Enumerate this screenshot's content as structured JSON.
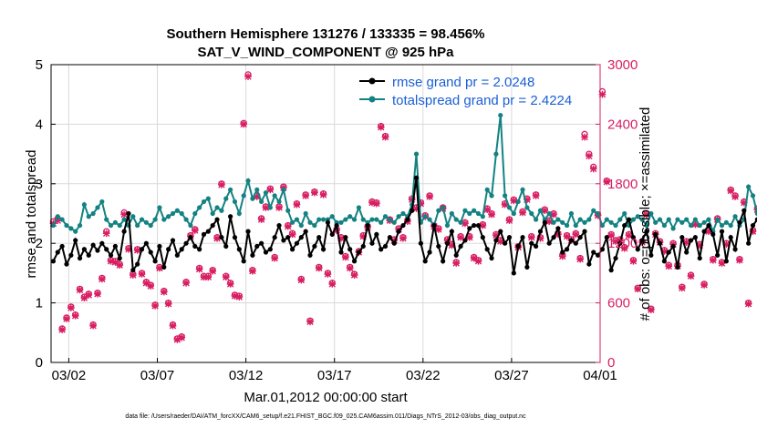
{
  "colors": {
    "rmse": "#000000",
    "spread": "#148282",
    "obs": "#d81e62",
    "legend_text": "#1a5fd6",
    "grid": "#dadada",
    "background": "#ffffff"
  },
  "chart_data": {
    "type": "line",
    "title": "Southern Hemisphere 131276 / 133335 = 98.456%",
    "subtitle": "SAT_V_WIND_COMPONENT @ 925 hPa",
    "xlabel": "Mar.01,2012 00:00:00 start",
    "ylabel": "rmse and totalspread",
    "ylabel_right": "# of obs: o=possible; ×=assimilated",
    "footer": "data file: /Users/raeder/DAI/ATM_forcXX/CAM6_setup/f.e21.FHIST_BGC.f09_025.CAM6assim.011/Diags_NTrS_2012-03/obs_diag_output.nc",
    "x_range_days": [
      0,
      31
    ],
    "x_ticks": [
      {
        "day": 1,
        "label": "03/02"
      },
      {
        "day": 6,
        "label": "03/07"
      },
      {
        "day": 11,
        "label": "03/12"
      },
      {
        "day": 16,
        "label": "03/17"
      },
      {
        "day": 21,
        "label": "03/22"
      },
      {
        "day": 26,
        "label": "03/27"
      },
      {
        "day": 31,
        "label": "04/01"
      }
    ],
    "ylim": [
      0,
      5
    ],
    "y_ticks": [
      "0",
      "1",
      "2",
      "3",
      "4",
      "5"
    ],
    "ylim_right": [
      0,
      3000
    ],
    "y_ticks_right": [
      "0",
      "600",
      "1200",
      "1800",
      "2400",
      "3000"
    ],
    "samples_per_day": 4,
    "legend": [
      {
        "name": "rmse grand pr = 2.0248",
        "series": "rmse"
      },
      {
        "name": "totalspread grand pr = 2.4224",
        "series": "spread"
      }
    ],
    "series": [
      {
        "name": "rmse",
        "color": "#000000",
        "marker": "circle",
        "values": [
          1.7,
          1.85,
          1.95,
          1.65,
          1.8,
          2.05,
          1.75,
          1.9,
          1.8,
          1.97,
          1.88,
          2.0,
          1.9,
          1.8,
          1.95,
          1.75,
          2.2,
          2.5,
          1.55,
          1.65,
          1.9,
          2.0,
          1.85,
          1.7,
          1.95,
          1.6,
          1.9,
          2.05,
          1.8,
          1.9,
          2.0,
          2.1,
          1.95,
          1.9,
          2.15,
          2.2,
          2.3,
          2.4,
          2.1,
          1.95,
          2.45,
          2.1,
          1.9,
          1.7,
          2.2,
          1.8,
          1.95,
          2.0,
          1.85,
          1.9,
          2.1,
          2.3,
          2.05,
          2.1,
          1.9,
          2.0,
          2.1,
          2.2,
          1.8,
          1.95,
          2.1,
          1.9,
          2.35,
          2.15,
          2.3,
          1.85,
          2.1,
          1.9,
          1.7,
          1.85,
          1.95,
          2.3,
          2.0,
          2.15,
          1.9,
          1.95,
          2.1,
          2.0,
          2.2,
          2.3,
          2.4,
          2.55,
          3.1,
          2.0,
          1.7,
          1.85,
          2.3,
          1.95,
          1.7,
          2.0,
          2.2,
          1.8,
          1.95,
          2.05,
          2.25,
          2.3,
          2.3,
          2.1,
          1.9,
          1.75,
          2.05,
          2.2,
          2.0,
          2.1,
          1.5,
          1.95,
          2.1,
          1.6,
          2.0,
          1.95,
          2.2,
          2.35,
          2.0,
          2.1,
          2.25,
          1.85,
          1.9,
          2.05,
          2.0,
          2.1,
          2.2,
          1.65,
          1.85,
          1.8,
          1.9,
          2.1,
          1.55,
          1.75,
          2.0,
          2.3,
          2.4,
          2.1,
          1.9,
          2.05,
          2.2,
          1.8,
          2.15,
          2.0,
          1.7,
          1.85,
          1.95,
          1.6,
          2.1,
          1.85,
          2.05,
          2.1,
          1.75,
          2.2,
          2.3,
          2.15,
          1.8,
          2.2,
          1.7,
          2.1,
          1.9,
          2.35,
          2.55,
          2.0,
          2.3,
          2.4,
          2.1,
          1.95,
          1.85,
          2.25,
          1.8,
          2.3
        ]
      },
      {
        "name": "totalspread",
        "color": "#148282",
        "marker": "circle",
        "values": [
          2.3,
          2.45,
          2.4,
          2.3,
          2.25,
          2.2,
          2.3,
          2.65,
          2.45,
          2.5,
          2.6,
          2.7,
          2.4,
          2.3,
          2.35,
          2.3,
          2.4,
          2.3,
          2.45,
          2.3,
          2.4,
          2.35,
          2.3,
          2.4,
          2.6,
          2.4,
          2.45,
          2.5,
          2.55,
          2.5,
          2.4,
          2.3,
          2.5,
          2.6,
          2.7,
          2.75,
          2.5,
          2.6,
          2.55,
          2.75,
          2.9,
          2.7,
          2.5,
          2.8,
          3.05,
          2.75,
          2.9,
          2.7,
          2.85,
          2.6,
          2.8,
          2.7,
          2.9,
          2.55,
          2.35,
          2.4,
          2.3,
          2.5,
          2.35,
          2.3,
          2.4,
          2.4,
          2.4,
          2.45,
          2.35,
          2.35,
          2.4,
          2.45,
          2.4,
          2.6,
          2.4,
          2.35,
          2.4,
          2.4,
          2.35,
          2.45,
          2.4,
          2.35,
          2.45,
          2.5,
          2.45,
          2.65,
          3.5,
          2.35,
          2.45,
          2.4,
          2.3,
          2.55,
          2.6,
          2.3,
          2.5,
          2.4,
          2.35,
          2.55,
          2.5,
          2.55,
          2.5,
          2.45,
          2.9,
          2.8,
          3.5,
          4.15,
          2.8,
          2.6,
          2.5,
          2.7,
          2.9,
          2.6,
          2.5,
          2.4,
          2.55,
          2.4,
          2.5,
          2.35,
          2.4,
          2.35,
          2.3,
          2.5,
          2.3,
          2.4,
          2.35,
          2.4,
          2.55,
          2.5,
          2.3,
          2.4,
          2.35,
          2.3,
          2.4,
          2.5,
          2.3,
          2.4,
          2.45,
          2.4,
          2.3,
          2.5,
          2.35,
          2.4,
          2.3,
          2.4,
          2.25,
          2.4,
          2.35,
          2.4,
          2.3,
          2.4,
          2.3,
          2.35,
          2.4,
          2.2,
          2.4,
          2.3,
          2.35,
          2.3,
          2.45,
          2.3,
          2.4,
          2.95,
          2.8,
          2.5,
          2.6,
          2.4,
          2.65,
          2.8,
          2.75,
          2.6,
          2.8,
          2.6,
          2.65
        ]
      },
      {
        "name": "obs_possible",
        "color": "#d81e62",
        "marker": "o",
        "axis": "right",
        "values": [
          1420,
          1450,
          340,
          450,
          560,
          480,
          740,
          660,
          690,
          380,
          700,
          850,
          1320,
          1030,
          1020,
          990,
          1510,
          1150,
          890,
          1140,
          900,
          810,
          780,
          580,
          960,
          720,
          600,
          380,
          240,
          260,
          810,
          1280,
          1340,
          950,
          870,
          870,
          930,
          1260,
          1800,
          870,
          800,
          680,
          670,
          2410,
          2900,
          930,
          1680,
          1450,
          1570,
          1750,
          1060,
          1570,
          1770,
          1380,
          1300,
          1600,
          840,
          1690,
          420,
          1720,
          960,
          1700,
          900,
          800,
          1340,
          1260,
          1070,
          960,
          890,
          1120,
          1280,
          1370,
          1620,
          1610,
          2380,
          2280,
          1440,
          1240,
          1350,
          1260,
          1430,
          1650,
          1560,
          1610,
          1480,
          1680,
          1380,
          1350,
          1560,
          1240,
          1190,
          1010,
          1270,
          1410,
          1270,
          1060,
          1030,
          1390,
          1550,
          1500,
          1290,
          1230,
          1600,
          1440,
          1640,
          1170,
          1520,
          1650,
          1270,
          1690,
          1260,
          1540,
          1430,
          1500,
          1300,
          1080,
          1280,
          1240,
          1300,
          1050,
          2300,
          2100,
          1970,
          1490,
          2730,
          1830,
          1290,
          1230,
          1240,
          1160,
          1290,
          1030,
          750,
          1220,
          1500,
          540,
          1300,
          1220,
          1130,
          980,
          1200,
          980,
          760,
          1220,
          880,
          1400,
          1190,
          790,
          1330,
          1040,
          1450,
          1010,
          1200,
          1740,
          1680,
          1040,
          1620,
          600,
          1330,
          1550,
          1300,
          1570,
          1270,
          1320,
          1370,
          1080,
          1740,
          1600
        ]
      },
      {
        "name": "obs_assimilated",
        "color": "#d81e62",
        "marker": "x",
        "axis": "right",
        "values": [
          1400,
          1430,
          330,
          440,
          550,
          470,
          730,
          650,
          680,
          370,
          690,
          840,
          1300,
          1020,
          1010,
          980,
          1490,
          1140,
          880,
          1130,
          890,
          800,
          770,
          570,
          950,
          710,
          590,
          370,
          230,
          250,
          800,
          1270,
          1330,
          940,
          860,
          860,
          920,
          1250,
          1790,
          860,
          790,
          670,
          660,
          2400,
          2880,
          920,
          1670,
          1440,
          1560,
          1740,
          1050,
          1560,
          1760,
          1370,
          1290,
          1590,
          830,
          1680,
          410,
          1710,
          950,
          1690,
          890,
          790,
          1330,
          1250,
          1060,
          950,
          880,
          1110,
          1270,
          1360,
          1610,
          1600,
          2370,
          2270,
          1430,
          1230,
          1340,
          1250,
          1420,
          1640,
          1550,
          1600,
          1470,
          1670,
          1370,
          1340,
          1550,
          1230,
          1180,
          1000,
          1260,
          1400,
          1260,
          1050,
          1020,
          1380,
          1540,
          1490,
          1280,
          1220,
          1590,
          1430,
          1630,
          1160,
          1510,
          1640,
          1260,
          1680,
          1250,
          1530,
          1420,
          1490,
          1290,
          1070,
          1270,
          1230,
          1290,
          1040,
          2270,
          2080,
          1950,
          1480,
          2700,
          1820,
          1280,
          1220,
          1230,
          1150,
          1280,
          1020,
          740,
          1210,
          1490,
          530,
          1290,
          1210,
          1120,
          970,
          1190,
          970,
          750,
          1210,
          870,
          1390,
          1180,
          780,
          1320,
          1030,
          1440,
          1000,
          1190,
          1730,
          1670,
          1030,
          1610,
          590,
          1320,
          1540,
          1290,
          1560,
          1260,
          1310,
          1360,
          1070,
          1730,
          1590
        ]
      }
    ]
  }
}
